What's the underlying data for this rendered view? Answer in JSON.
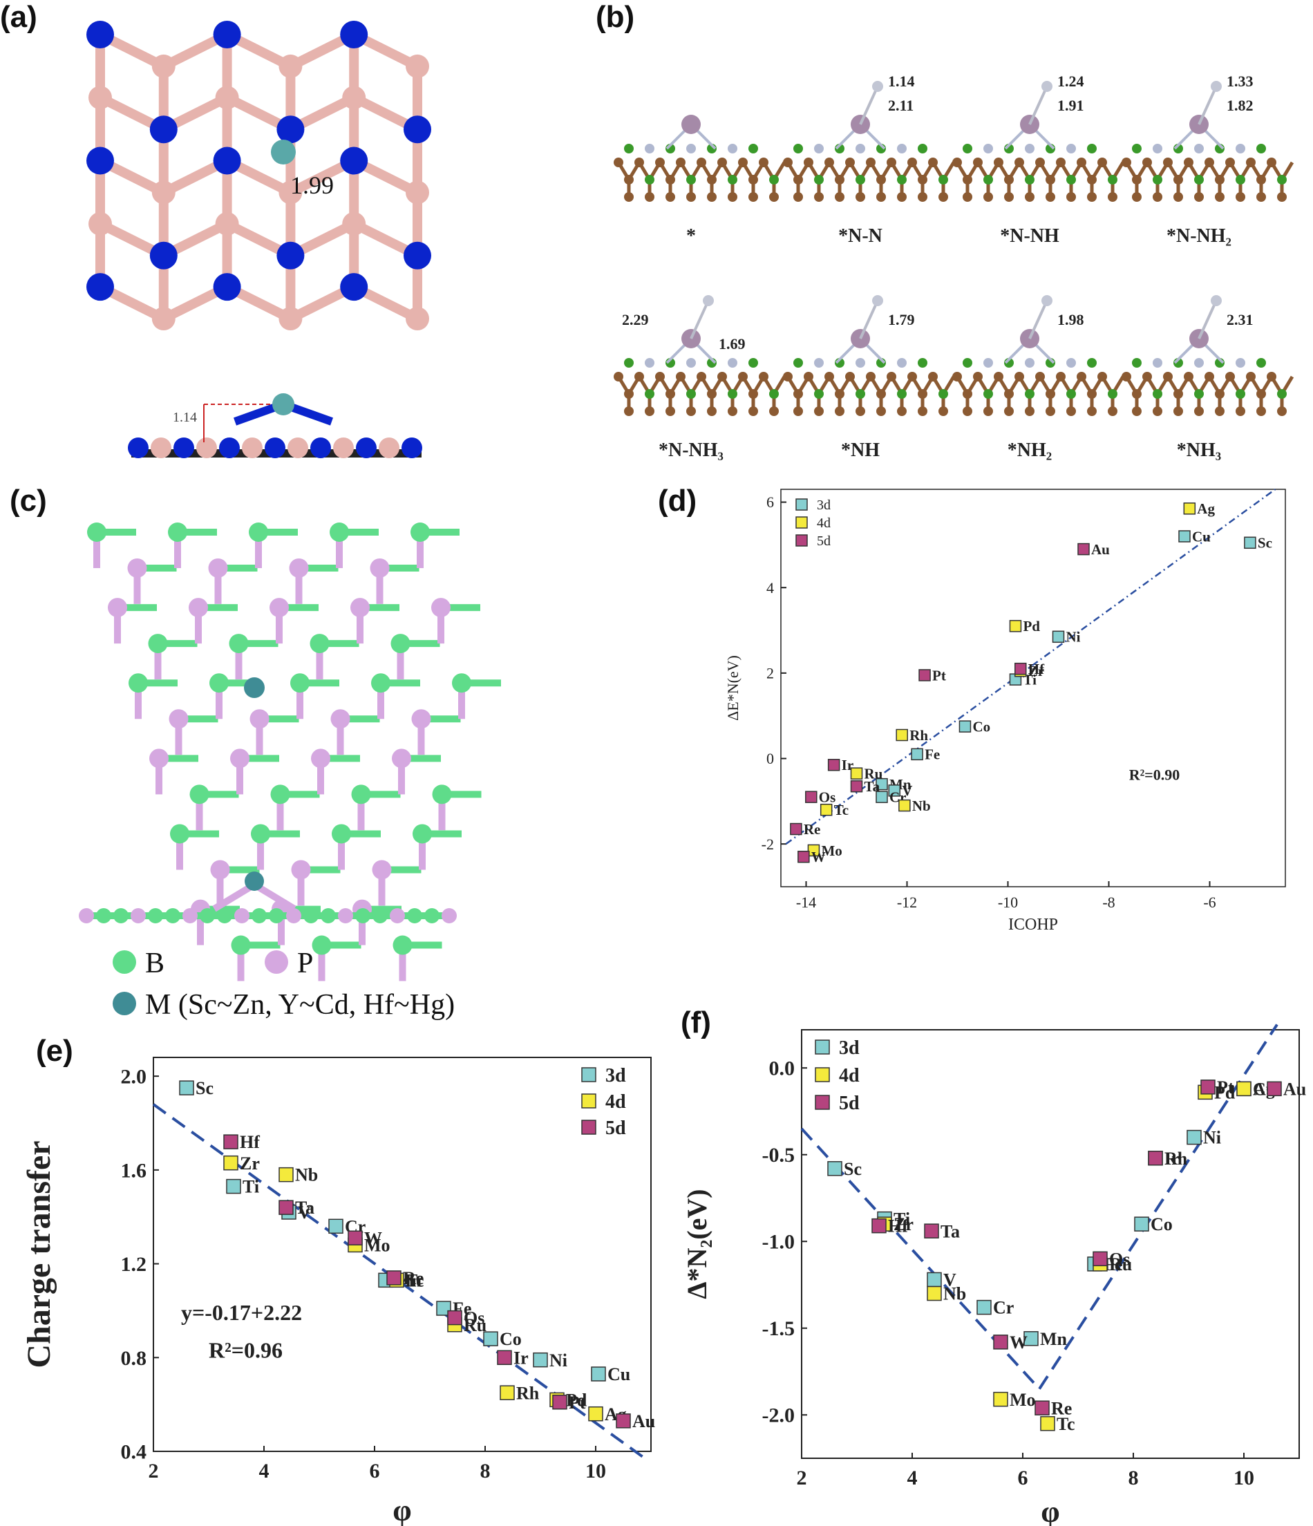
{
  "panels": {
    "a": "(a)",
    "b": "(b)",
    "c": "(c)",
    "d": "(d)",
    "e": "(e)",
    "f": "(f)"
  },
  "panel_a": {
    "bond_top": "1.99",
    "height_side": "1.14",
    "colors": {
      "N": "#0a24cc",
      "B": "#e6b3ad",
      "M": "#5aa8a8"
    }
  },
  "panel_b": {
    "structures": [
      {
        "label": "*",
        "lengths": []
      },
      {
        "label": "*N-N",
        "lengths": [
          "1.14",
          "2.11"
        ]
      },
      {
        "label": "*N-NH",
        "lengths": [
          "1.24",
          "1.91"
        ]
      },
      {
        "label": "*N-NH₂",
        "lengths": [
          "1.33",
          "1.82"
        ]
      },
      {
        "label": "*N-NH₃",
        "lengths": [
          "2.29",
          "1.69"
        ]
      },
      {
        "label": "*NH",
        "lengths": [
          "1.79"
        ]
      },
      {
        "label": "*NH₂",
        "lengths": [
          "1.98"
        ]
      },
      {
        "label": "*NH₃",
        "lengths": [
          "2.31"
        ]
      }
    ],
    "colors": {
      "frame": "#8b5a32",
      "green": "#3a9a2a",
      "N": "#b0b8d0",
      "M": "#a58aa8"
    }
  },
  "panel_c": {
    "legend": {
      "B": "B",
      "P": "P",
      "M": "M (Sc~Zn, Y~Cd, Hf~Hg)"
    },
    "colors": {
      "B": "#5fdc8a",
      "P": "#d5a8e0",
      "M": "#3f8c95"
    }
  },
  "chart_data": [
    {
      "panel": "d",
      "type": "scatter",
      "xlabel": "ICOHP",
      "ylabel": "ΔE*N(eV)",
      "xlim": [
        -14.5,
        -4.5
      ],
      "ylim": [
        -3.0,
        6.3
      ],
      "xticks": [
        -14,
        -12,
        -10,
        -8,
        -6
      ],
      "yticks": [
        -2,
        0,
        2,
        4,
        6
      ],
      "annotation": "R²=0.90",
      "fit_line": {
        "x": [
          -14.4,
          -4.7
        ],
        "y": [
          -2.0,
          6.3
        ]
      },
      "legend": [
        "3d",
        "4d",
        "5d"
      ],
      "colors": {
        "3d": "#86cfd0",
        "4d": "#f4ea3c",
        "5d": "#b4437e"
      },
      "series": [
        {
          "name": "3d",
          "points": [
            {
              "label": "Sc",
              "x": -5.2,
              "y": 5.05
            },
            {
              "label": "Cu",
              "x": -6.5,
              "y": 5.2
            },
            {
              "label": "Ni",
              "x": -9.0,
              "y": 2.85
            },
            {
              "label": "Ti",
              "x": -9.85,
              "y": 1.85
            },
            {
              "label": "Co",
              "x": -10.85,
              "y": 0.75
            },
            {
              "label": "Fe",
              "x": -11.8,
              "y": 0.1
            },
            {
              "label": "Mn",
              "x": -12.5,
              "y": -0.6
            },
            {
              "label": "V",
              "x": -12.25,
              "y": -0.75
            },
            {
              "label": "Cr",
              "x": -12.5,
              "y": -0.9
            }
          ]
        },
        {
          "name": "4d",
          "points": [
            {
              "label": "Ag",
              "x": -6.4,
              "y": 5.85
            },
            {
              "label": "Pd",
              "x": -9.85,
              "y": 3.1
            },
            {
              "label": "Rh",
              "x": -12.1,
              "y": 0.55
            },
            {
              "label": "Ru",
              "x": -13.0,
              "y": -0.35
            },
            {
              "label": "Nb",
              "x": -12.05,
              "y": -1.1
            },
            {
              "label": "Tc",
              "x": -13.6,
              "y": -1.2
            },
            {
              "label": "Mo",
              "x": -13.85,
              "y": -2.15
            },
            {
              "label": "Zr",
              "x": -9.75,
              "y": 2.05
            }
          ]
        },
        {
          "name": "5d",
          "points": [
            {
              "label": "Au",
              "x": -8.5,
              "y": 4.9
            },
            {
              "label": "Hf",
              "x": -9.75,
              "y": 2.1
            },
            {
              "label": "Pt",
              "x": -11.65,
              "y": 1.95
            },
            {
              "label": "Ir",
              "x": -13.45,
              "y": -0.15
            },
            {
              "label": "Ta",
              "x": -13.0,
              "y": -0.65
            },
            {
              "label": "Os",
              "x": -13.9,
              "y": -0.9
            },
            {
              "label": "Re",
              "x": -14.2,
              "y": -1.65
            },
            {
              "label": "W",
              "x": -14.05,
              "y": -2.3
            }
          ]
        }
      ]
    },
    {
      "panel": "e",
      "type": "scatter",
      "xlabel": "φ",
      "ylabel": "Charge transfer",
      "xlim": [
        2,
        11
      ],
      "ylim": [
        0.4,
        2.08
      ],
      "xticks": [
        2,
        4,
        6,
        8,
        10
      ],
      "yticks": [
        0.4,
        0.8,
        1.2,
        1.6,
        2.0
      ],
      "annotation": [
        "y=-0.17+2.22",
        "R²=0.96"
      ],
      "fit_line": {
        "x": [
          2.0,
          10.95
        ],
        "y": [
          1.88,
          0.36
        ]
      },
      "legend": [
        "3d",
        "4d",
        "5d"
      ],
      "colors": {
        "3d": "#86cfd0",
        "4d": "#f4ea3c",
        "5d": "#b4437e"
      },
      "series": [
        {
          "name": "3d",
          "points": [
            {
              "label": "Sc",
              "x": 2.6,
              "y": 1.95
            },
            {
              "label": "Ti",
              "x": 3.45,
              "y": 1.53
            },
            {
              "label": "V",
              "x": 4.45,
              "y": 1.42
            },
            {
              "label": "Cr",
              "x": 5.3,
              "y": 1.36
            },
            {
              "label": "Mn",
              "x": 6.2,
              "y": 1.13
            },
            {
              "label": "Fe",
              "x": 7.25,
              "y": 1.01
            },
            {
              "label": "Co",
              "x": 8.1,
              "y": 0.88
            },
            {
              "label": "Ni",
              "x": 9.0,
              "y": 0.79
            },
            {
              "label": "Cu",
              "x": 10.05,
              "y": 0.73
            }
          ]
        },
        {
          "name": "4d",
          "points": [
            {
              "label": "Zr",
              "x": 3.4,
              "y": 1.63
            },
            {
              "label": "Nb",
              "x": 4.4,
              "y": 1.58
            },
            {
              "label": "Mo",
              "x": 5.65,
              "y": 1.28
            },
            {
              "label": "Tc",
              "x": 6.4,
              "y": 1.13
            },
            {
              "label": "Ru",
              "x": 7.45,
              "y": 0.94
            },
            {
              "label": "Rh",
              "x": 8.4,
              "y": 0.65
            },
            {
              "label": "Pd",
              "x": 9.3,
              "y": 0.62
            },
            {
              "label": "Ag",
              "x": 10.0,
              "y": 0.56
            }
          ]
        },
        {
          "name": "5d",
          "points": [
            {
              "label": "Hf",
              "x": 3.4,
              "y": 1.72
            },
            {
              "label": "Ta",
              "x": 4.4,
              "y": 1.44
            },
            {
              "label": "W",
              "x": 5.65,
              "y": 1.31
            },
            {
              "label": "Re",
              "x": 6.35,
              "y": 1.14
            },
            {
              "label": "Os",
              "x": 7.45,
              "y": 0.97
            },
            {
              "label": "Ir",
              "x": 8.35,
              "y": 0.8
            },
            {
              "label": "Pt",
              "x": 9.35,
              "y": 0.61
            },
            {
              "label": "Au",
              "x": 10.5,
              "y": 0.53
            }
          ]
        }
      ]
    },
    {
      "panel": "f",
      "type": "scatter",
      "xlabel": "φ",
      "ylabel": "Δ*N₂(eV)",
      "xlim": [
        2,
        11
      ],
      "ylim": [
        -2.25,
        0.22
      ],
      "xticks": [
        2,
        4,
        6,
        8,
        10
      ],
      "yticks": [
        -2.0,
        -1.5,
        -1.0,
        -0.5,
        0.0
      ],
      "fit_lines": [
        {
          "x": [
            2.0,
            6.3
          ],
          "y": [
            -0.35,
            -1.85
          ]
        },
        {
          "x": [
            6.3,
            10.6
          ],
          "y": [
            -1.85,
            0.25
          ]
        }
      ],
      "legend": [
        "3d",
        "4d",
        "5d"
      ],
      "colors": {
        "3d": "#86cfd0",
        "4d": "#f4ea3c",
        "5d": "#b4437e"
      },
      "series": [
        {
          "name": "3d",
          "points": [
            {
              "label": "Sc",
              "x": 2.6,
              "y": -0.58
            },
            {
              "label": "Ti",
              "x": 3.5,
              "y": -0.87
            },
            {
              "label": "V",
              "x": 4.4,
              "y": -1.22
            },
            {
              "label": "Cr",
              "x": 5.3,
              "y": -1.38
            },
            {
              "label": "Mn",
              "x": 6.15,
              "y": -1.56
            },
            {
              "label": "Fe",
              "x": 7.3,
              "y": -1.13
            },
            {
              "label": "Co",
              "x": 8.15,
              "y": -0.9
            },
            {
              "label": "Ni",
              "x": 9.1,
              "y": -0.4
            },
            {
              "label": "Cu",
              "x": 10.0,
              "y": -0.12
            }
          ]
        },
        {
          "name": "4d",
          "points": [
            {
              "label": "Zr",
              "x": 3.5,
              "y": -0.9
            },
            {
              "label": "Nb",
              "x": 4.4,
              "y": -1.3
            },
            {
              "label": "Mo",
              "x": 5.6,
              "y": -1.91
            },
            {
              "label": "Tc",
              "x": 6.45,
              "y": -2.05
            },
            {
              "label": "Ru",
              "x": 7.4,
              "y": -1.13
            },
            {
              "label": "Rh",
              "x": 8.4,
              "y": -0.52
            },
            {
              "label": "Pd",
              "x": 9.3,
              "y": -0.14
            },
            {
              "label": "Ag",
              "x": 10.0,
              "y": -0.12
            }
          ]
        },
        {
          "name": "5d",
          "points": [
            {
              "label": "Hf",
              "x": 3.4,
              "y": -0.91
            },
            {
              "label": "Ta",
              "x": 4.35,
              "y": -0.94
            },
            {
              "label": "W",
              "x": 5.6,
              "y": -1.58
            },
            {
              "label": "Re",
              "x": 6.35,
              "y": -1.96
            },
            {
              "label": "Os",
              "x": 7.4,
              "y": -1.1
            },
            {
              "label": "Ir",
              "x": 8.4,
              "y": -0.52
            },
            {
              "label": "Pt",
              "x": 9.35,
              "y": -0.11
            },
            {
              "label": "Au",
              "x": 10.55,
              "y": -0.12
            }
          ]
        }
      ]
    }
  ]
}
